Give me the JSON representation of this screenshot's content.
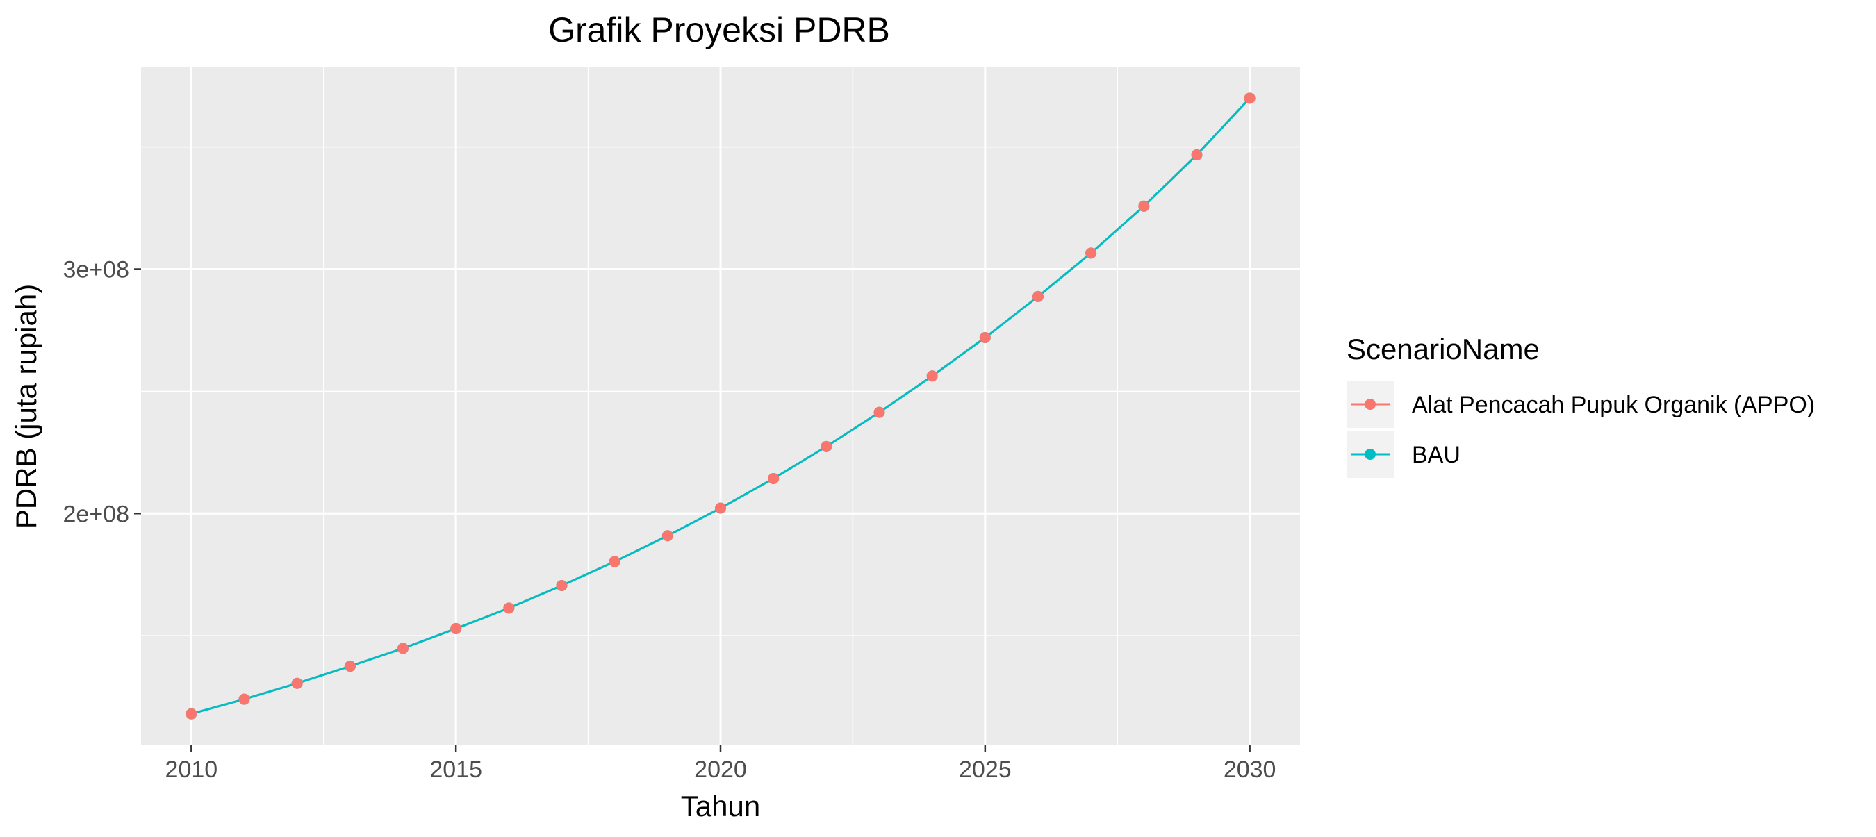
{
  "chart_data": {
    "type": "line",
    "title": "Grafik Proyeksi PDRB",
    "xlabel": "Tahun",
    "ylabel": "PDRB (juta rupiah)",
    "x": [
      2010,
      2011,
      2012,
      2013,
      2014,
      2015,
      2016,
      2017,
      2018,
      2019,
      2020,
      2021,
      2022,
      2023,
      2024,
      2025,
      2026,
      2027,
      2028,
      2029,
      2030
    ],
    "series": [
      {
        "name": "Alat Pencacah Pupuk Organik (APPO)",
        "color": "#F8766D",
        "values": [
          118000000,
          124000000,
          130500000,
          137500000,
          144800000,
          152900000,
          161300000,
          170500000,
          180300000,
          190900000,
          202200000,
          214300000,
          227400000,
          241400000,
          256300000,
          272000000,
          288800000,
          306600000,
          325800000,
          346800000,
          370000000
        ]
      },
      {
        "name": "BAU",
        "color": "#00BFC4",
        "values": [
          118000000,
          124000000,
          130500000,
          137500000,
          144800000,
          152900000,
          161300000,
          170500000,
          180300000,
          190900000,
          202200000,
          214300000,
          227400000,
          241400000,
          256300000,
          272000000,
          288800000,
          306600000,
          325800000,
          346800000,
          370000000
        ]
      }
    ],
    "xlim": [
      2009.05,
      2030.95
    ],
    "ylim": [
      105400000,
      382600000
    ],
    "x_ticks": [
      2010,
      2015,
      2020,
      2025,
      2030
    ],
    "x_tick_labels": [
      "2010",
      "2015",
      "2020",
      "2025",
      "2030"
    ],
    "y_ticks": [
      200000000,
      300000000
    ],
    "y_tick_labels": [
      "2e+08",
      "3e+08"
    ],
    "y_minor_ticks": [
      150000000,
      250000000,
      350000000
    ],
    "x_minor_ticks": [
      2012.5,
      2017.5,
      2022.5,
      2027.5
    ],
    "grid": true,
    "panel_background": "#EBEBEB",
    "legend": {
      "title": "ScenarioName",
      "placement": "right",
      "entries": [
        "Alat Pencacah Pupuk Organik (APPO)",
        "BAU"
      ]
    }
  }
}
